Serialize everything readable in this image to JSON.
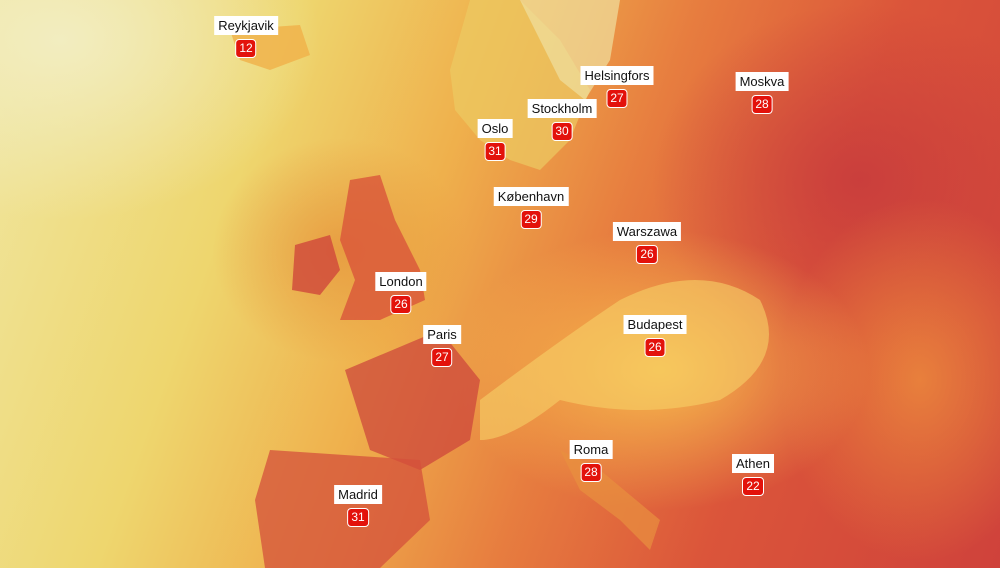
{
  "cities": [
    {
      "name": "Reykjavik",
      "temp": "12"
    },
    {
      "name": "Helsingfors",
      "temp": "27"
    },
    {
      "name": "Moskva",
      "temp": "28"
    },
    {
      "name": "Stockholm",
      "temp": "30"
    },
    {
      "name": "Oslo",
      "temp": "31"
    },
    {
      "name": "København",
      "temp": "29"
    },
    {
      "name": "Warszawa",
      "temp": "26"
    },
    {
      "name": "London",
      "temp": "26"
    },
    {
      "name": "Budapest",
      "temp": "26"
    },
    {
      "name": "Paris",
      "temp": "27"
    },
    {
      "name": "Roma",
      "temp": "28"
    },
    {
      "name": "Athen",
      "temp": "22"
    },
    {
      "name": "Madrid",
      "temp": "31"
    }
  ],
  "colors": {
    "badge": "#e3120b",
    "cool": "#f0e6a0",
    "hot": "#cf423b"
  }
}
